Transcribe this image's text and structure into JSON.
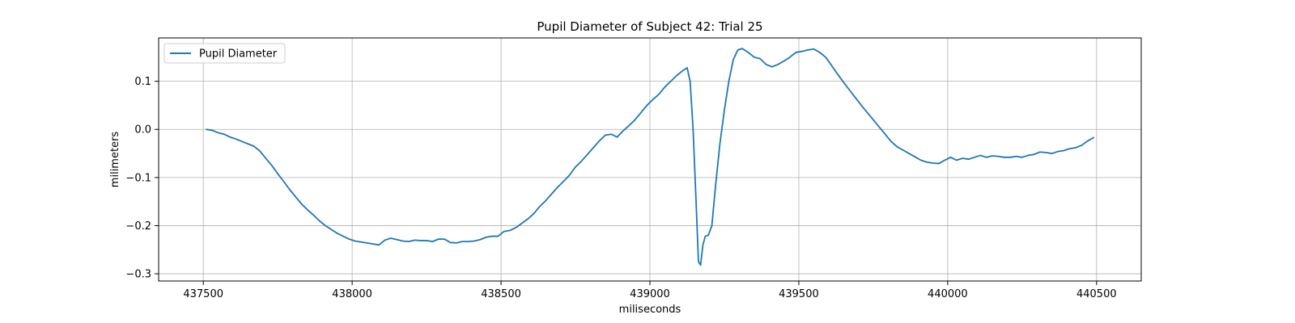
{
  "chart_data": {
    "type": "line",
    "title": "Pupil Diameter of Subject 42: Trial 25",
    "xlabel": "miliseconds",
    "ylabel": "milimeters",
    "xlim": [
      437350,
      440650
    ],
    "ylim": [
      -0.315,
      0.19
    ],
    "xticks": [
      437500,
      438000,
      438500,
      439000,
      439500,
      440000,
      440500
    ],
    "xtick_labels": [
      "437500",
      "438000",
      "438500",
      "439000",
      "439500",
      "440000",
      "440500"
    ],
    "yticks": [
      0.1,
      0.0,
      -0.1,
      -0.2,
      -0.3
    ],
    "ytick_labels": [
      "0.1",
      "0.0",
      "−0.1",
      "−0.2",
      "−0.3"
    ],
    "grid": true,
    "legend_position": "upper-left",
    "series": [
      {
        "name": "Pupil Diameter",
        "color": "#1f77b4",
        "points": [
          [
            437510,
            0.0
          ],
          [
            437530,
            -0.002
          ],
          [
            437550,
            -0.007
          ],
          [
            437570,
            -0.01
          ],
          [
            437590,
            -0.016
          ],
          [
            437610,
            -0.02
          ],
          [
            437630,
            -0.025
          ],
          [
            437650,
            -0.03
          ],
          [
            437670,
            -0.035
          ],
          [
            437690,
            -0.045
          ],
          [
            437710,
            -0.06
          ],
          [
            437730,
            -0.075
          ],
          [
            437750,
            -0.092
          ],
          [
            437770,
            -0.108
          ],
          [
            437790,
            -0.125
          ],
          [
            437810,
            -0.14
          ],
          [
            437830,
            -0.155
          ],
          [
            437850,
            -0.167
          ],
          [
            437870,
            -0.178
          ],
          [
            437890,
            -0.19
          ],
          [
            437910,
            -0.2
          ],
          [
            437930,
            -0.208
          ],
          [
            437950,
            -0.216
          ],
          [
            437970,
            -0.222
          ],
          [
            437990,
            -0.228
          ],
          [
            438010,
            -0.232
          ],
          [
            438030,
            -0.234
          ],
          [
            438050,
            -0.236
          ],
          [
            438070,
            -0.238
          ],
          [
            438090,
            -0.24
          ],
          [
            438110,
            -0.23
          ],
          [
            438130,
            -0.226
          ],
          [
            438150,
            -0.229
          ],
          [
            438170,
            -0.232
          ],
          [
            438190,
            -0.233
          ],
          [
            438210,
            -0.23
          ],
          [
            438230,
            -0.231
          ],
          [
            438250,
            -0.231
          ],
          [
            438270,
            -0.233
          ],
          [
            438290,
            -0.228
          ],
          [
            438310,
            -0.228
          ],
          [
            438330,
            -0.235
          ],
          [
            438350,
            -0.236
          ],
          [
            438370,
            -0.233
          ],
          [
            438390,
            -0.233
          ],
          [
            438410,
            -0.232
          ],
          [
            438430,
            -0.229
          ],
          [
            438450,
            -0.224
          ],
          [
            438470,
            -0.222
          ],
          [
            438490,
            -0.222
          ],
          [
            438510,
            -0.212
          ],
          [
            438530,
            -0.21
          ],
          [
            438550,
            -0.204
          ],
          [
            438570,
            -0.195
          ],
          [
            438590,
            -0.186
          ],
          [
            438610,
            -0.175
          ],
          [
            438630,
            -0.16
          ],
          [
            438650,
            -0.148
          ],
          [
            438670,
            -0.134
          ],
          [
            438690,
            -0.12
          ],
          [
            438710,
            -0.108
          ],
          [
            438730,
            -0.095
          ],
          [
            438750,
            -0.078
          ],
          [
            438770,
            -0.066
          ],
          [
            438790,
            -0.052
          ],
          [
            438810,
            -0.038
          ],
          [
            438830,
            -0.024
          ],
          [
            438850,
            -0.012
          ],
          [
            438870,
            -0.01
          ],
          [
            438890,
            -0.016
          ],
          [
            438910,
            -0.003
          ],
          [
            438930,
            0.008
          ],
          [
            438950,
            0.02
          ],
          [
            438970,
            0.035
          ],
          [
            438990,
            0.05
          ],
          [
            439010,
            0.062
          ],
          [
            439030,
            0.073
          ],
          [
            439050,
            0.088
          ],
          [
            439070,
            0.1
          ],
          [
            439090,
            0.112
          ],
          [
            439110,
            0.122
          ],
          [
            439125,
            0.128
          ],
          [
            439135,
            0.1
          ],
          [
            439145,
            0.0
          ],
          [
            439155,
            -0.15
          ],
          [
            439163,
            -0.275
          ],
          [
            439170,
            -0.282
          ],
          [
            439178,
            -0.24
          ],
          [
            439186,
            -0.222
          ],
          [
            439196,
            -0.22
          ],
          [
            439208,
            -0.2
          ],
          [
            439220,
            -0.12
          ],
          [
            439235,
            -0.03
          ],
          [
            439250,
            0.04
          ],
          [
            439265,
            0.1
          ],
          [
            439280,
            0.145
          ],
          [
            439295,
            0.165
          ],
          [
            439310,
            0.168
          ],
          [
            439330,
            0.16
          ],
          [
            439350,
            0.15
          ],
          [
            439370,
            0.147
          ],
          [
            439390,
            0.135
          ],
          [
            439410,
            0.13
          ],
          [
            439430,
            0.135
          ],
          [
            439450,
            0.142
          ],
          [
            439470,
            0.15
          ],
          [
            439490,
            0.16
          ],
          [
            439510,
            0.162
          ],
          [
            439530,
            0.165
          ],
          [
            439550,
            0.167
          ],
          [
            439570,
            0.16
          ],
          [
            439590,
            0.15
          ],
          [
            439610,
            0.133
          ],
          [
            439630,
            0.115
          ],
          [
            439650,
            0.098
          ],
          [
            439670,
            0.082
          ],
          [
            439690,
            0.066
          ],
          [
            439710,
            0.05
          ],
          [
            439730,
            0.035
          ],
          [
            439750,
            0.02
          ],
          [
            439770,
            0.005
          ],
          [
            439790,
            -0.01
          ],
          [
            439810,
            -0.025
          ],
          [
            439830,
            -0.036
          ],
          [
            439850,
            -0.043
          ],
          [
            439870,
            -0.05
          ],
          [
            439890,
            -0.057
          ],
          [
            439910,
            -0.064
          ],
          [
            439930,
            -0.068
          ],
          [
            439950,
            -0.07
          ],
          [
            439970,
            -0.071
          ],
          [
            439990,
            -0.064
          ],
          [
            440010,
            -0.058
          ],
          [
            440030,
            -0.064
          ],
          [
            440050,
            -0.06
          ],
          [
            440070,
            -0.062
          ],
          [
            440090,
            -0.058
          ],
          [
            440110,
            -0.054
          ],
          [
            440130,
            -0.058
          ],
          [
            440150,
            -0.055
          ],
          [
            440170,
            -0.056
          ],
          [
            440190,
            -0.058
          ],
          [
            440210,
            -0.058
          ],
          [
            440230,
            -0.056
          ],
          [
            440250,
            -0.058
          ],
          [
            440270,
            -0.054
          ],
          [
            440290,
            -0.052
          ],
          [
            440310,
            -0.047
          ],
          [
            440330,
            -0.048
          ],
          [
            440350,
            -0.05
          ],
          [
            440370,
            -0.046
          ],
          [
            440390,
            -0.044
          ],
          [
            440410,
            -0.04
          ],
          [
            440430,
            -0.038
          ],
          [
            440450,
            -0.033
          ],
          [
            440470,
            -0.024
          ],
          [
            440490,
            -0.017
          ]
        ]
      }
    ]
  }
}
